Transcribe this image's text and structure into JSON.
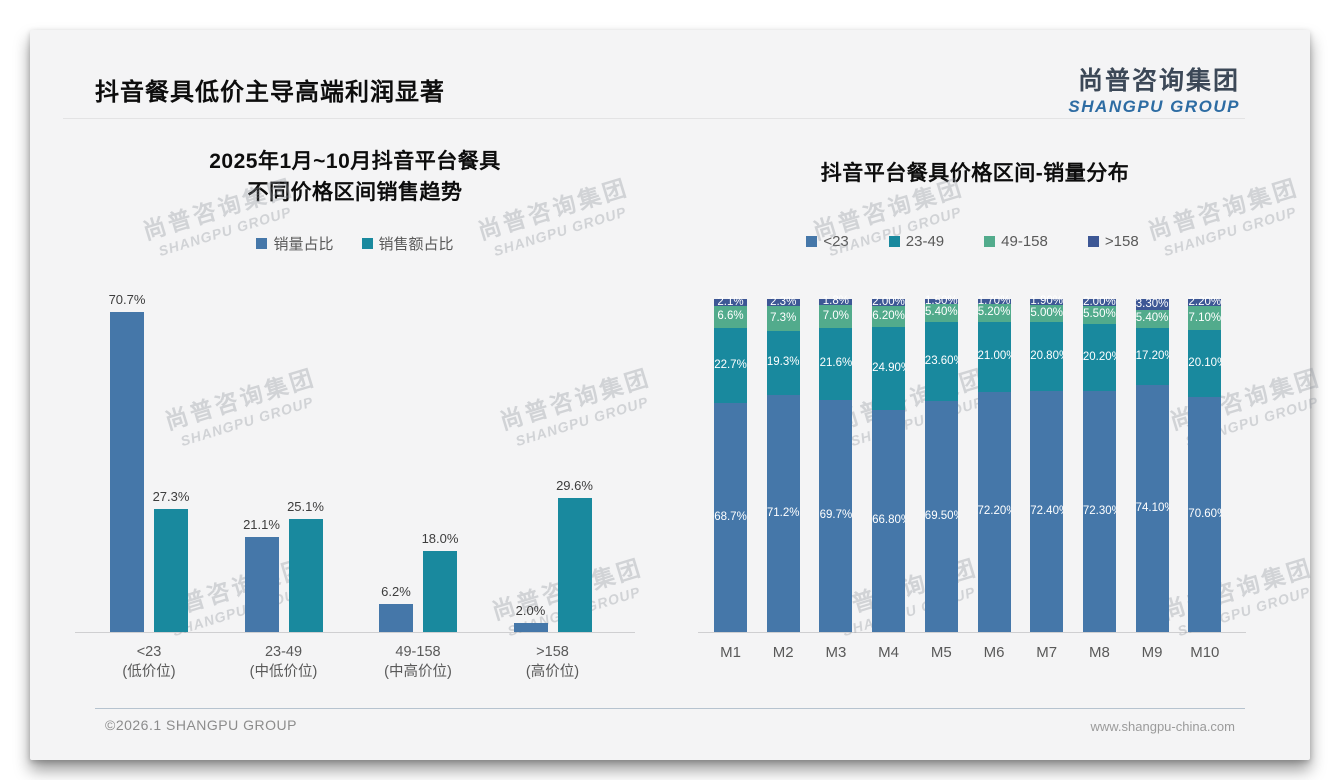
{
  "page": {
    "title": "抖音餐具低价主导高端利润显著",
    "logo": {
      "cn": "尚普咨询集团",
      "en": "SHANGPU GROUP"
    },
    "watermark": {
      "cn": "尚普咨询集团",
      "en": "SHANGPU GROUP"
    },
    "footer": {
      "left": "©2026.1 SHANGPU GROUP",
      "right": "www.shangpu-china.com"
    }
  },
  "colors": {
    "steel_blue": "#4577A9",
    "teal": "#19899E",
    "green": "#52AB8C",
    "navy": "#3D5795",
    "logo_blue": "#2D6CA3",
    "background": "#f4f4f5"
  },
  "chart_data": [
    {
      "type": "bar",
      "title_lines": [
        "2025年1月~10月抖音平台餐具",
        "不同价格区间销售趋势"
      ],
      "categories": [
        [
          "<23",
          "(低价位)"
        ],
        [
          "23-49",
          "(中低价位)"
        ],
        [
          "49-158",
          "(中高价位)"
        ],
        [
          ">158",
          "(高价位)"
        ]
      ],
      "series": [
        {
          "name": "销量占比",
          "color_key": "steel_blue",
          "values": [
            70.7,
            21.1,
            6.2,
            2.0
          ],
          "labels": [
            "70.7%",
            "21.1%",
            "6.2%",
            "2.0%"
          ]
        },
        {
          "name": "销售额占比",
          "color_key": "teal",
          "values": [
            27.3,
            25.1,
            18.0,
            29.6
          ],
          "labels": [
            "27.3%",
            "25.1%",
            "18.0%",
            "29.6%"
          ]
        }
      ],
      "ylim": [
        0,
        75
      ],
      "value_axis_visible": false,
      "grid": false,
      "legend_position": "top",
      "data_labels": true
    },
    {
      "type": "bar",
      "subtype": "stacked-100",
      "title": "抖音平台餐具价格区间-销量分布",
      "categories": [
        "M1",
        "M2",
        "M3",
        "M4",
        "M5",
        "M6",
        "M7",
        "M8",
        "M9",
        "M10"
      ],
      "series": [
        {
          "name": "<23",
          "color_key": "steel_blue",
          "values": [
            68.7,
            71.2,
            69.7,
            66.8,
            69.5,
            72.2,
            72.4,
            72.3,
            74.1,
            70.6
          ],
          "labels": [
            "68.7%",
            "71.2%",
            "69.7%",
            "66.80%",
            "69.50%",
            "72.20%",
            "72.40%",
            "72.30%",
            "74.10%",
            "70.60%"
          ]
        },
        {
          "name": "23-49",
          "color_key": "teal",
          "values": [
            22.7,
            19.3,
            21.6,
            24.9,
            23.6,
            21.0,
            20.8,
            20.2,
            17.2,
            20.1
          ],
          "labels": [
            "22.7%",
            "19.3%",
            "21.6%",
            "24.90%",
            "23.60%",
            "21.00%",
            "20.80%",
            "20.20%",
            "17.20%",
            "20.10%"
          ]
        },
        {
          "name": "49-158",
          "color_key": "green",
          "values": [
            6.6,
            7.3,
            7.0,
            6.2,
            5.4,
            5.2,
            5.0,
            5.5,
            5.4,
            7.1
          ],
          "labels": [
            "6.6%",
            "7.3%",
            "7.0%",
            "6.20%",
            "5.40%",
            "5.20%",
            "5.00%",
            "5.50%",
            "5.40%",
            "7.10%"
          ]
        },
        {
          "name": ">158",
          "color_key": "navy",
          "values": [
            2.1,
            2.3,
            1.8,
            2.0,
            1.5,
            1.7,
            1.9,
            2.0,
            3.3,
            2.2
          ],
          "labels": [
            "2.1%",
            "2.3%",
            "1.8%",
            "2.00%",
            "1.50%",
            "1.70%",
            "1.90%",
            "2.00%",
            "3.30%",
            "2.20%"
          ]
        }
      ],
      "ylim": [
        0,
        100
      ],
      "value_axis_visible": false,
      "grid": false,
      "legend_position": "top",
      "data_labels": true
    }
  ]
}
